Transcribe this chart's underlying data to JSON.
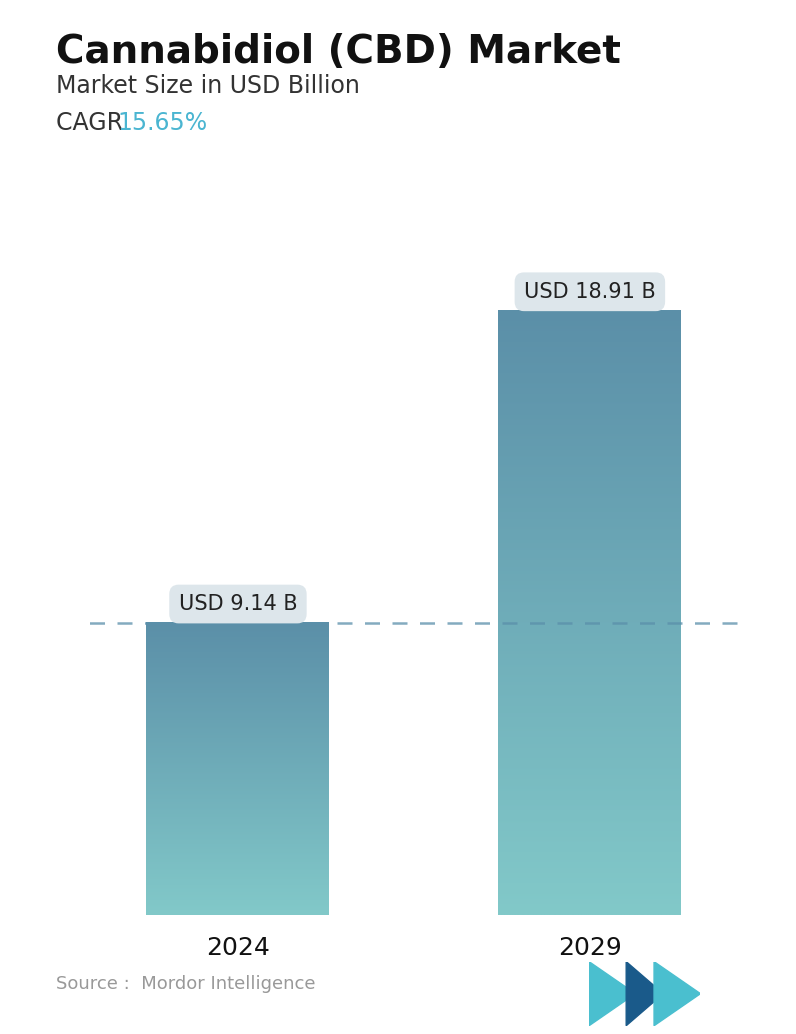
{
  "title": "Cannabidiol (CBD) Market",
  "subtitle": "Market Size in USD Billion",
  "cagr_label": "CAGR  ",
  "cagr_value": "15.65%",
  "cagr_color": "#4ab5d1",
  "categories": [
    "2024",
    "2029"
  ],
  "values": [
    9.14,
    18.91
  ],
  "labels": [
    "USD 9.14 B",
    "USD 18.91 B"
  ],
  "bar_top_color": "#5b8fa8",
  "bar_bottom_color": "#82c9c9",
  "dashed_line_color": "#5a8faa",
  "source_text": "Source :  Mordor Intelligence",
  "source_color": "#999999",
  "background_color": "#ffffff",
  "title_fontsize": 28,
  "subtitle_fontsize": 17,
  "cagr_fontsize": 17,
  "label_fontsize": 15,
  "tick_fontsize": 18,
  "source_fontsize": 13,
  "ylim": [
    0,
    22
  ],
  "callout_bg": "#dde6eb",
  "callout_text_color": "#222222"
}
